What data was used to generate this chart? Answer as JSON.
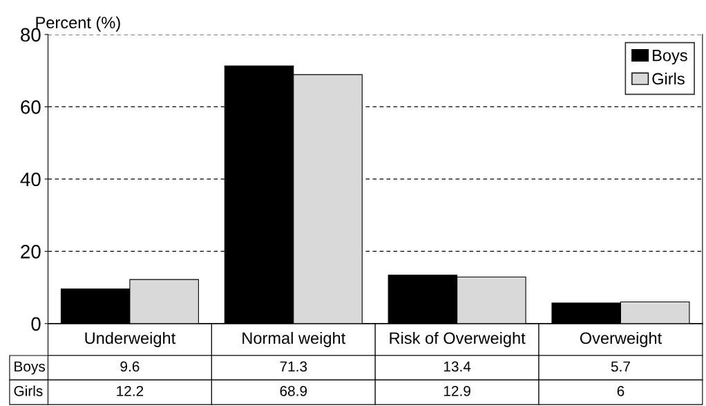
{
  "chart_data": {
    "type": "bar",
    "ylabel": "Percent (%)",
    "categories": [
      "Underweight",
      "Normal weight",
      "Risk of Overweight",
      "Overweight"
    ],
    "series": [
      {
        "name": "Boys",
        "color": "#000000",
        "values": [
          9.6,
          71.3,
          13.4,
          5.7
        ]
      },
      {
        "name": "Girls",
        "color": "#d9d9d9",
        "values": [
          12.2,
          68.9,
          12.9,
          6
        ]
      }
    ],
    "ylim": [
      0,
      80
    ],
    "yticks": [
      0,
      20,
      40,
      60,
      80
    ],
    "grid": "y",
    "legend": "top right",
    "data_labels": true
  }
}
